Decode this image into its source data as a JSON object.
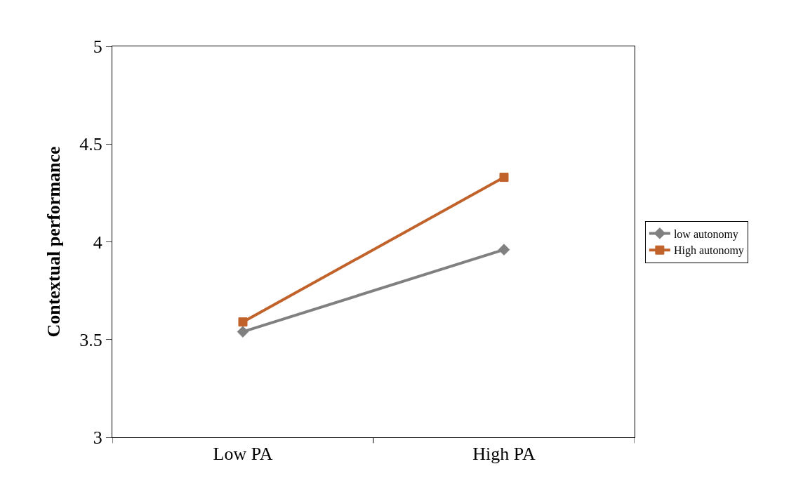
{
  "chart_data": {
    "type": "line",
    "ylabel": "Contextual performance",
    "categories": [
      "Low PA",
      "High PA"
    ],
    "series": [
      {
        "name": "low autonomy",
        "color": "#808080",
        "values": [
          3.54,
          3.96
        ],
        "marker": "diamond"
      },
      {
        "name": "High autonomy",
        "color": "#c0622a",
        "values": [
          3.59,
          4.33
        ],
        "marker": "square"
      }
    ],
    "ylim": [
      3,
      5
    ],
    "yticks": [
      3,
      3.5,
      4,
      4.5,
      5
    ],
    "legend": "right",
    "line_style": "solid"
  }
}
